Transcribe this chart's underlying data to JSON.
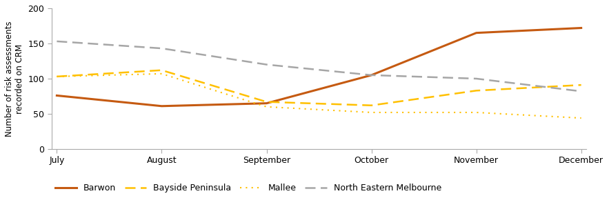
{
  "months": [
    "July",
    "August",
    "September",
    "October",
    "November",
    "December"
  ],
  "series": {
    "Barwon": [
      76,
      61,
      65,
      105,
      165,
      172
    ],
    "Bayside Peninsula": [
      103,
      112,
      67,
      62,
      83,
      91
    ],
    "Mallee": [
      103,
      107,
      60,
      52,
      52,
      44
    ],
    "North Eastern Melbourne": [
      153,
      143,
      120,
      105,
      100,
      82
    ]
  },
  "colors": {
    "Barwon": "#C55A11",
    "Bayside Peninsula": "#FFC000",
    "Mallee": "#FFC000",
    "North Eastern Melbourne": "#A6A6A6"
  },
  "linestyles": {
    "Barwon": "solid",
    "Bayside Peninsula": "dashed",
    "Mallee": "dotted",
    "North Eastern Melbourne": "dashed"
  },
  "linewidths": {
    "Barwon": 2.2,
    "Bayside Peninsula": 1.8,
    "Mallee": 1.5,
    "North Eastern Melbourne": 1.8
  },
  "dashes": {
    "Bayside Peninsula": [
      6,
      3
    ],
    "Mallee": [
      1,
      3
    ],
    "North Eastern Melbourne": [
      6,
      3
    ]
  },
  "ylim": [
    0,
    200
  ],
  "yticks": [
    0,
    50,
    100,
    150,
    200
  ],
  "ylabel": "Number of risk assessments\nrecorded on CRM",
  "ylabel_fontsize": 8.5,
  "tick_fontsize": 9,
  "legend_fontsize": 9,
  "background_color": "#ffffff"
}
